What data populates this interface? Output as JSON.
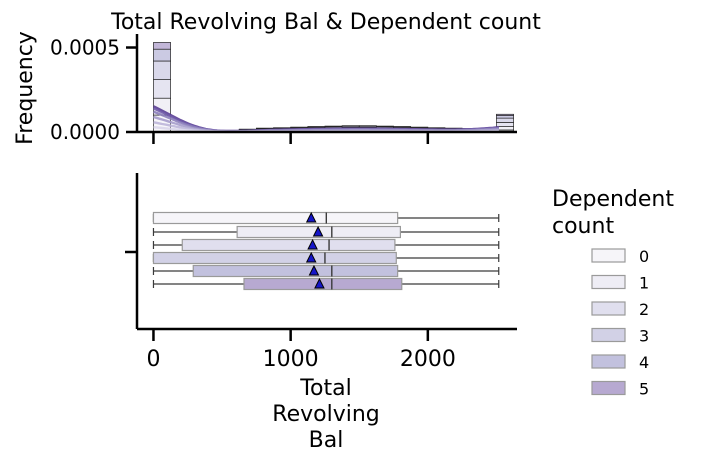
{
  "chart_data": {
    "type": "box",
    "title": "Total Revolving Bal & Dependent count",
    "hist_ylabel": "Frequency",
    "hist_yticks": [
      "0.0000",
      "0.0005"
    ],
    "xlabel_lines": [
      "Total",
      "Revolving",
      "Bal"
    ],
    "xticks": [
      "0",
      "1000",
      "2000"
    ],
    "xlim": [
      -120,
      2650
    ],
    "hist_ylim": [
      0,
      0.00058
    ],
    "legend_title_lines": [
      "Dependent",
      "count"
    ],
    "legend_position": "right",
    "colors": [
      "#f6f5f9",
      "#eeedf5",
      "#e0dfee",
      "#d2d1e6",
      "#c2c1de",
      "#b7a9d1"
    ],
    "series": [
      {
        "name": "0",
        "whisker_low": 0,
        "q1": 0,
        "median": 1260,
        "q3": 1780,
        "whisker_high": 2517,
        "mean": 1150
      },
      {
        "name": "1",
        "whisker_low": 0,
        "q1": 610,
        "median": 1300,
        "q3": 1800,
        "whisker_high": 2517,
        "mean": 1200
      },
      {
        "name": "2",
        "whisker_low": 0,
        "q1": 210,
        "median": 1280,
        "q3": 1760,
        "whisker_high": 2517,
        "mean": 1160
      },
      {
        "name": "3",
        "whisker_low": 0,
        "q1": 0,
        "median": 1250,
        "q3": 1770,
        "whisker_high": 2517,
        "mean": 1150
      },
      {
        "name": "4",
        "whisker_low": 0,
        "q1": 290,
        "median": 1300,
        "q3": 1780,
        "whisker_high": 2517,
        "mean": 1170
      },
      {
        "name": "5",
        "whisker_low": 0,
        "q1": 660,
        "median": 1300,
        "q3": 1810,
        "whisker_high": 2517,
        "mean": 1210
      }
    ],
    "histogram": {
      "bin_edges": [
        0,
        125,
        250,
        375,
        500,
        625,
        750,
        875,
        1000,
        1125,
        1250,
        1375,
        1500,
        1625,
        1750,
        1875,
        2000,
        2125,
        2250,
        2375,
        2500,
        2625
      ],
      "stacked_by_level": [
        [
          0.0001,
          0,
          0,
          0,
          0,
          1.5e-06,
          2e-06,
          2.2e-06,
          2.5e-06,
          2.8e-06,
          3e-06,
          3.2e-06,
          3.2e-06,
          3e-06,
          2.8e-06,
          2.5e-06,
          2.2e-06,
          2e-06,
          1.8e-06,
          1.6e-06,
          1.2e-05
        ],
        [
          0.0001,
          0,
          0,
          0,
          0,
          3e-06,
          4e-06,
          4.5e-06,
          5e-06,
          5.5e-06,
          6e-06,
          6.5e-06,
          6.5e-06,
          6e-06,
          5.5e-06,
          5e-06,
          4.5e-06,
          4e-06,
          3.5e-06,
          3e-06,
          2e-05
        ],
        [
          0.00011,
          0,
          0,
          0,
          0,
          4e-06,
          5.5e-06,
          6e-06,
          7e-06,
          8e-06,
          8.5e-06,
          9e-06,
          9e-06,
          8.5e-06,
          8e-06,
          7e-06,
          6e-06,
          5.5e-06,
          5e-06,
          4e-06,
          2.5e-05
        ],
        [
          0.00011,
          0,
          0,
          0,
          0,
          4e-06,
          5.5e-06,
          6e-06,
          7e-06,
          8e-06,
          8.5e-06,
          9e-06,
          9e-06,
          8.5e-06,
          8e-06,
          7e-06,
          6e-06,
          5.5e-06,
          5e-06,
          4e-06,
          2.5e-05
        ],
        [
          7e-05,
          0,
          0,
          0,
          0,
          3e-06,
          4e-06,
          4.5e-06,
          5e-06,
          5.5e-06,
          6e-06,
          6.5e-06,
          6.5e-06,
          6e-06,
          5.5e-06,
          5e-06,
          4.5e-06,
          4e-06,
          3.5e-06,
          3e-06,
          1.5e-05
        ],
        [
          4e-05,
          0,
          0,
          0,
          0,
          1.5e-06,
          2e-06,
          2.2e-06,
          2.5e-06,
          2.8e-06,
          3e-06,
          3.2e-06,
          3.2e-06,
          3e-06,
          2.8e-06,
          2.5e-06,
          2.2e-06,
          2e-06,
          1.8e-06,
          1.6e-06,
          8e-06
        ]
      ]
    }
  }
}
